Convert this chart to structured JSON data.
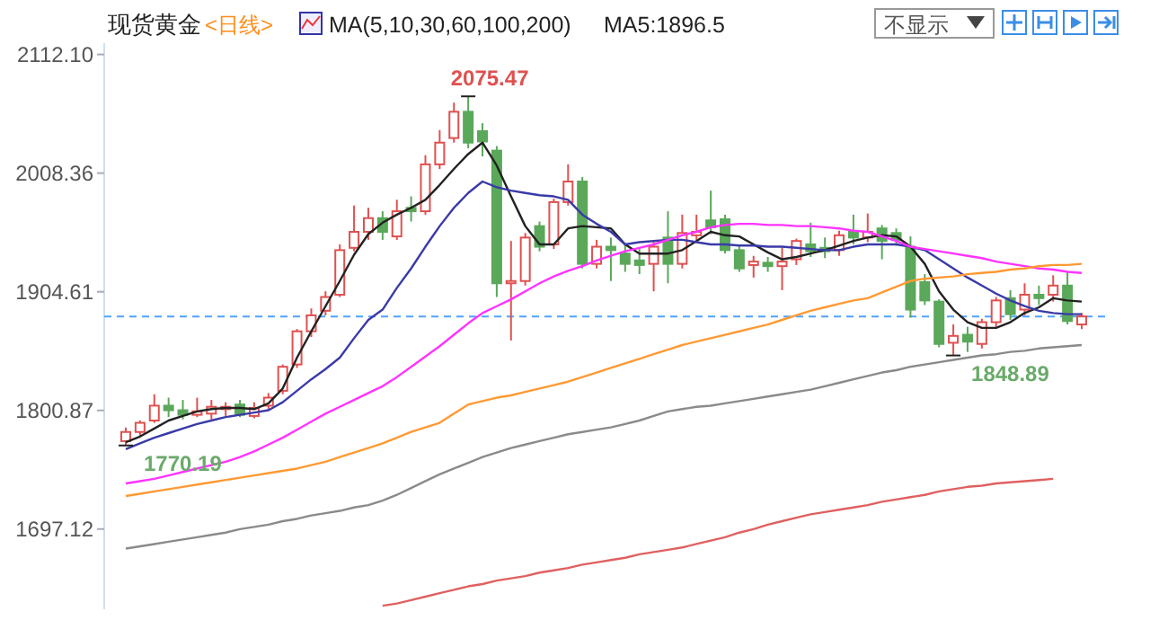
{
  "chart_data": {
    "type": "candlestick",
    "title": "现货黄金",
    "annotations": [
      "<日线>",
      "MA(5,10,30,60,100,200)",
      "MA5:1896.5",
      "不显示",
      "2075.47",
      "1770.19",
      "1848.89"
    ],
    "categories": [
      null,
      null,
      null,
      null,
      null,
      null,
      null,
      null,
      null,
      null,
      null,
      null,
      null,
      null,
      null,
      null,
      null,
      null,
      null,
      null,
      null,
      null,
      null,
      null,
      null,
      null,
      null,
      null,
      null,
      null,
      null,
      null,
      null,
      null,
      null,
      null,
      null,
      null,
      null,
      null,
      null,
      null,
      null,
      null,
      null,
      null,
      null,
      null,
      null,
      null,
      null,
      null,
      null,
      null,
      null,
      null,
      null,
      null,
      null,
      null,
      null,
      null,
      null,
      null,
      null,
      null,
      null,
      null
    ],
    "ohlc": [
      [
        1774,
        1786,
        1770.19,
        1782
      ],
      [
        1782,
        1792,
        1778,
        1790
      ],
      [
        1792,
        1815,
        1790,
        1805
      ],
      [
        1805,
        1812,
        1795,
        1801
      ],
      [
        1801,
        1810,
        1793,
        1797
      ],
      [
        1797,
        1812,
        1795,
        1800
      ],
      [
        1798,
        1810,
        1793,
        1804
      ],
      [
        1802,
        1808,
        1796,
        1804
      ],
      [
        1806,
        1810,
        1795,
        1797
      ],
      [
        1796,
        1808,
        1794,
        1803
      ],
      [
        1805,
        1816,
        1802,
        1812
      ],
      [
        1818,
        1841,
        1815,
        1839
      ],
      [
        1841,
        1872,
        1838,
        1870
      ],
      [
        1870,
        1890,
        1865,
        1884
      ],
      [
        1888,
        1905,
        1884,
        1900
      ],
      [
        1902,
        1946,
        1900,
        1941
      ],
      [
        1943,
        1980,
        1940,
        1957
      ],
      [
        1957,
        1978,
        1950,
        1969
      ],
      [
        1969,
        1975,
        1950,
        1957
      ],
      [
        1953,
        1985,
        1950,
        1975
      ],
      [
        1978,
        1988,
        1966,
        1975
      ],
      [
        1975,
        2024,
        1972,
        2016
      ],
      [
        2016,
        2046,
        2012,
        2035
      ],
      [
        2039,
        2070,
        2035,
        2062
      ],
      [
        2062,
        2075.47,
        2030,
        2035
      ],
      [
        2045,
        2052,
        2023,
        2036
      ],
      [
        2028,
        2032,
        1900,
        1912
      ],
      [
        1912,
        1949,
        1862,
        1914
      ],
      [
        1914,
        1956,
        1910,
        1952
      ],
      [
        1962,
        1966,
        1940,
        1944
      ],
      [
        1946,
        1986,
        1942,
        1983
      ],
      [
        1983,
        2016,
        1980,
        2001
      ],
      [
        2001,
        2005,
        1925,
        1929
      ],
      [
        1929,
        1950,
        1925,
        1944
      ],
      [
        1944,
        1952,
        1914,
        1941
      ],
      [
        1938,
        1946,
        1922,
        1929
      ],
      [
        1932,
        1942,
        1920,
        1928
      ],
      [
        1929,
        1948,
        1905,
        1944
      ],
      [
        1952,
        1975,
        1912,
        1929
      ],
      [
        1929,
        1972,
        1925,
        1956
      ],
      [
        1954,
        1972,
        1950,
        1957
      ],
      [
        1967,
        1993,
        1955,
        1961
      ],
      [
        1968,
        1972,
        1938,
        1941
      ],
      [
        1941,
        1945,
        1922,
        1925
      ],
      [
        1928,
        1936,
        1917,
        1931
      ],
      [
        1930,
        1935,
        1922,
        1927
      ],
      [
        1927,
        1944,
        1906,
        1931
      ],
      [
        1933,
        1951,
        1928,
        1949
      ],
      [
        1946,
        1965,
        1935,
        1940
      ],
      [
        1943,
        1952,
        1934,
        1940
      ],
      [
        1941,
        1958,
        1936,
        1954
      ],
      [
        1957,
        1972,
        1946,
        1952
      ],
      [
        1952,
        1973,
        1948,
        1957
      ],
      [
        1960,
        1963,
        1933,
        1949
      ],
      [
        1956,
        1960,
        1945,
        1950
      ],
      [
        1944,
        1953,
        1882,
        1889
      ],
      [
        1913,
        1920,
        1893,
        1897
      ],
      [
        1896,
        1898,
        1856,
        1859
      ],
      [
        1860,
        1876,
        1848.89,
        1866
      ],
      [
        1867,
        1874,
        1852,
        1861
      ],
      [
        1859,
        1881,
        1855,
        1878
      ],
      [
        1878,
        1900,
        1874,
        1897
      ],
      [
        1899,
        1906,
        1880,
        1885
      ],
      [
        1889,
        1912,
        1884,
        1902
      ],
      [
        1902,
        1910,
        1893,
        1899
      ],
      [
        1902,
        1919,
        1896,
        1910
      ],
      [
        1910,
        1922,
        1876,
        1879
      ],
      [
        1876,
        1886,
        1872,
        1883
      ]
    ],
    "series": [
      {
        "type": "line",
        "color": "#222222",
        "values": [
          1773,
          1778,
          1785,
          1792,
          1796,
          1800,
          1802,
          1803,
          1803,
          1802,
          1807,
          1820,
          1847,
          1870,
          1892,
          1914,
          1937,
          1955,
          1965,
          1972,
          1978,
          1985,
          1998,
          2012,
          2025,
          2035,
          2015,
          1988,
          1962,
          1946,
          1946,
          1960,
          1962,
          1961,
          1960,
          1946,
          1938,
          1938,
          1938,
          1941,
          1949,
          1957,
          1954,
          1953,
          1946,
          1939,
          1933,
          1935,
          1938,
          1941,
          1945,
          1949,
          1952,
          1954,
          1953,
          1944,
          1929,
          1905,
          1889,
          1878,
          1873,
          1873,
          1878,
          1886,
          1891,
          1899,
          1897,
          1896
        ]
      },
      {
        "type": "line",
        "color": "#3a3aa8",
        "values": [
          1767,
          1772,
          1777,
          1781,
          1785,
          1789,
          1792,
          1795,
          1797,
          1799,
          1801,
          1808,
          1818,
          1828,
          1837,
          1847,
          1864,
          1880,
          1889,
          1908,
          1925,
          1944,
          1962,
          1978,
          1991,
          2001,
          1996,
          1993,
          1991,
          1989,
          1988,
          1985,
          1972,
          1964,
          1957,
          1946,
          1948,
          1949,
          1950,
          1950,
          1948,
          1946,
          1946,
          1945,
          1945,
          1944,
          1944,
          1943,
          1942,
          1941,
          1941,
          1944,
          1946,
          1946,
          1946,
          1944,
          1941,
          1933,
          1925,
          1917,
          1910,
          1903,
          1897,
          1892,
          1888,
          1886,
          1885,
          1885
        ]
      },
      {
        "type": "line",
        "color": "#ff33ff",
        "values": [
          1737,
          1739,
          1741,
          1744,
          1747,
          1750,
          1753,
          1756,
          1760,
          1765,
          1771,
          1777,
          1784,
          1791,
          1798,
          1804,
          1810,
          1816,
          1822,
          1830,
          1839,
          1848,
          1857,
          1867,
          1877,
          1886,
          1892,
          1898,
          1905,
          1912,
          1918,
          1923,
          1927,
          1932,
          1936,
          1940,
          1943,
          1946,
          1950,
          1954,
          1957,
          1961,
          1963,
          1964,
          1964,
          1963,
          1963,
          1962,
          1962,
          1961,
          1960,
          1958,
          1957,
          1953,
          1949,
          1944,
          1942,
          1940,
          1938,
          1936,
          1934,
          1931,
          1929,
          1927,
          1925,
          1924,
          1922,
          1921
        ]
      },
      {
        "type": "line",
        "color": "#ff9933",
        "values": [
          1726,
          1728,
          1730,
          1732,
          1734,
          1736,
          1738,
          1740,
          1742,
          1744,
          1746,
          1748,
          1750,
          1753,
          1756,
          1760,
          1764,
          1768,
          1772,
          1777,
          1782,
          1786,
          1790,
          1798,
          1806,
          1809,
          1812,
          1814,
          1817,
          1820,
          1823,
          1826,
          1830,
          1834,
          1838,
          1842,
          1846,
          1850,
          1854,
          1858,
          1861,
          1864,
          1867,
          1870,
          1873,
          1876,
          1880,
          1884,
          1888,
          1891,
          1894,
          1897,
          1899,
          1904,
          1909,
          1914,
          1916,
          1917,
          1918,
          1920,
          1921,
          1922,
          1924,
          1925,
          1927,
          1928,
          1928,
          1929
        ]
      },
      {
        "type": "line",
        "color": "#8a8a8a",
        "values": [
          1680,
          1682,
          1684,
          1686,
          1688,
          1690,
          1692,
          1694,
          1697,
          1699,
          1701,
          1704,
          1706,
          1709,
          1711,
          1713,
          1716,
          1718,
          1722,
          1727,
          1733,
          1739,
          1745,
          1750,
          1755,
          1760,
          1764,
          1768,
          1771,
          1774,
          1777,
          1780,
          1782,
          1784,
          1786,
          1789,
          1792,
          1796,
          1800,
          1802,
          1804,
          1805,
          1807,
          1809,
          1811,
          1813,
          1815,
          1817,
          1819,
          1822,
          1825,
          1828,
          1831,
          1834,
          1836,
          1839,
          1841,
          1843,
          1845,
          1847,
          1849,
          1850,
          1852,
          1853,
          1855,
          1856,
          1857,
          1858
        ]
      },
      {
        "type": "line",
        "color": "#e06060",
        "values": [
          null,
          null,
          null,
          null,
          null,
          null,
          null,
          null,
          null,
          null,
          null,
          null,
          null,
          null,
          null,
          null,
          null,
          null,
          1630,
          1632,
          1635,
          1638,
          1641,
          1644,
          1647,
          1649,
          1652,
          1654,
          1656,
          1659,
          1661,
          1663,
          1666,
          1668,
          1670,
          1672,
          1675,
          1677,
          1679,
          1681,
          1684,
          1687,
          1690,
          1694,
          1697,
          1701,
          1704,
          1707,
          1710,
          1712,
          1714,
          1716,
          1718,
          1721,
          1723,
          1725,
          1727,
          1730,
          1732,
          1734,
          1735,
          1737,
          1738,
          1739,
          1740,
          1741,
          null,
          null
        ]
      }
    ],
    "ylim": [
      1627,
      2122
    ],
    "yticks": [
      {
        "value": 2112.1,
        "label": "2112.10"
      },
      2008.36,
      1904.61,
      1800.87,
      1697.12
    ],
    "ref_lines": [
      {
        "axis": "y",
        "value": 1883,
        "color": "#4da3ff",
        "line_style": "dashed"
      }
    ]
  }
}
